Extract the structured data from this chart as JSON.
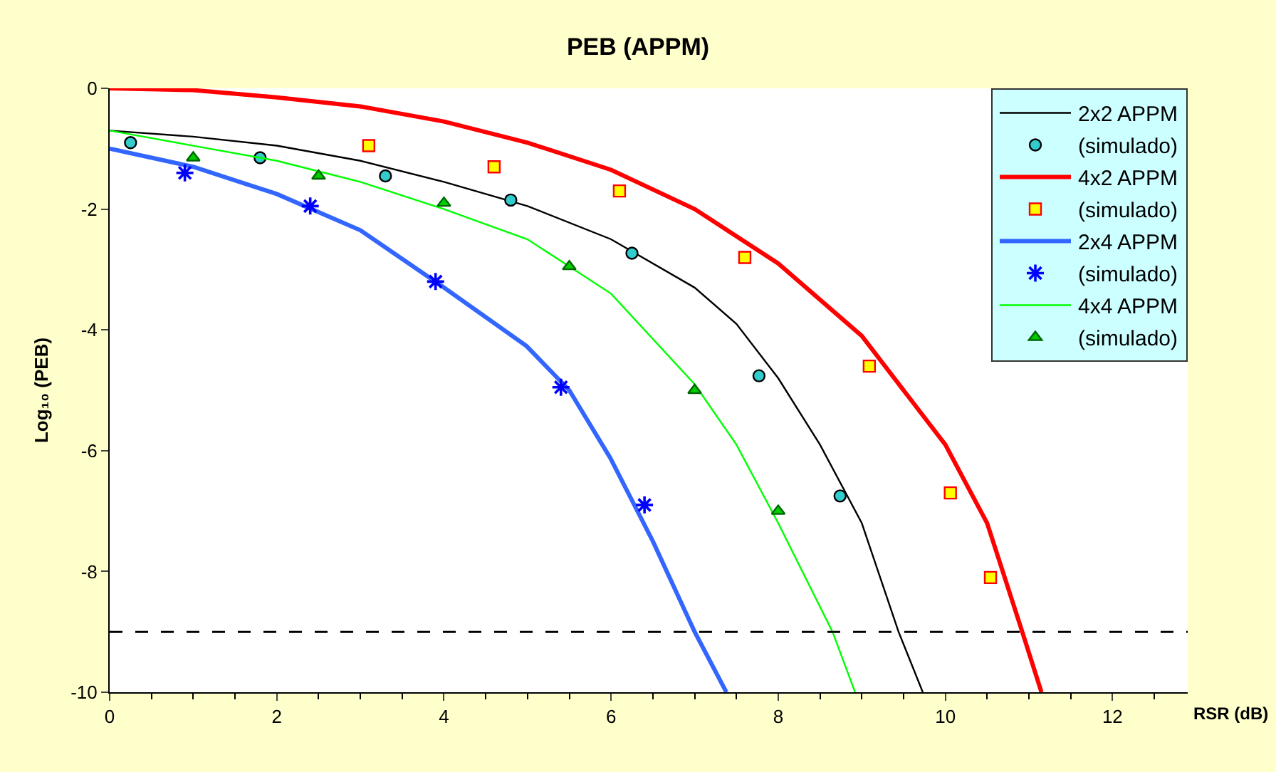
{
  "chart_data": {
    "type": "line",
    "title": "PEB (APPM)",
    "xlabel": "RSR (dB)",
    "ylabel": "Log₁₀ (PEB)",
    "xlim": [
      0,
      12.9
    ],
    "xticks": [
      0,
      2,
      4,
      6,
      8,
      10,
      12
    ],
    "ylim": [
      -10,
      0
    ],
    "yticks": [
      0,
      -2,
      -4,
      -6,
      -8,
      -10
    ],
    "grid": false,
    "legend": "top right",
    "ref_lines": [
      {
        "axis": "y",
        "value": -9,
        "color": "#000000",
        "line_style": "dashed"
      }
    ],
    "series": [
      {
        "name": "2x2 APPM",
        "marker": "none",
        "color": "#000000",
        "x": [
          0,
          1,
          2,
          3,
          4,
          5,
          6,
          7,
          7.5,
          8,
          8.5,
          9,
          9.44,
          9.73
        ],
        "values": [
          -0.7,
          -0.8,
          -0.95,
          -1.2,
          -1.55,
          -1.95,
          -2.5,
          -3.3,
          -3.9,
          -4.8,
          -5.9,
          -7.2,
          -9,
          -10
        ]
      },
      {
        "name": "(simulado)",
        "type": "scatter",
        "marker": "circle",
        "color": "#33cccc",
        "x": [
          0.25,
          1.8,
          3.3,
          4.8,
          6.25,
          7.77,
          8.74
        ],
        "values": [
          -0.9,
          -1.15,
          -1.45,
          -1.85,
          -2.73,
          -4.76,
          -6.75
        ]
      },
      {
        "name": "4x2 APPM",
        "marker": "none",
        "color": "#ff0000",
        "x": [
          0,
          1,
          2,
          3,
          4,
          5,
          6,
          7,
          8,
          9,
          10,
          10.5,
          10.92,
          11.15
        ],
        "values": [
          0,
          -0.03,
          -0.15,
          -0.3,
          -0.55,
          -0.9,
          -1.35,
          -2,
          -2.9,
          -4.1,
          -5.9,
          -7.2,
          -9,
          -10
        ]
      },
      {
        "name": "(simulado)",
        "type": "scatter",
        "marker": "square",
        "color": "#ffff00",
        "x": [
          3.1,
          4.6,
          6.1,
          7.6,
          9.09,
          10.06,
          10.54
        ],
        "values": [
          -0.95,
          -1.3,
          -1.7,
          -2.8,
          -4.6,
          -6.7,
          -8.1
        ]
      },
      {
        "name": "2x4 APPM",
        "marker": "none",
        "color": "#3366ff",
        "x": [
          0,
          1,
          2,
          3,
          4,
          4.99,
          5.5,
          5.99,
          6.5,
          7,
          7.38
        ],
        "values": [
          -1,
          -1.3,
          -1.75,
          -2.35,
          -3.3,
          -4.27,
          -5,
          -6.12,
          -7.5,
          -9,
          -10
        ]
      },
      {
        "name": "(simulado)",
        "type": "scatter",
        "marker": "cross",
        "color": "#0000ff",
        "x": [
          0.9,
          2.4,
          3.9,
          5.4,
          6.4
        ],
        "values": [
          -1.4,
          -1.95,
          -3.2,
          -4.95,
          -6.9
        ]
      },
      {
        "name": "4x4 APPM",
        "marker": "none",
        "color": "#00ff00",
        "x": [
          0,
          1,
          2,
          3,
          4,
          5,
          6,
          7,
          7.5,
          8,
          8.65,
          8.92
        ],
        "values": [
          -0.7,
          -0.95,
          -1.2,
          -1.55,
          -2,
          -2.5,
          -3.4,
          -4.9,
          -5.9,
          -7.2,
          -9,
          -10
        ]
      },
      {
        "name": "(simulado)",
        "type": "scatter",
        "marker": "triangle",
        "color": "#00cc00",
        "x": [
          1,
          2.5,
          4,
          5.5,
          7,
          8
        ],
        "values": [
          -1.15,
          -1.45,
          -1.9,
          -2.95,
          -5,
          -7
        ]
      }
    ]
  }
}
